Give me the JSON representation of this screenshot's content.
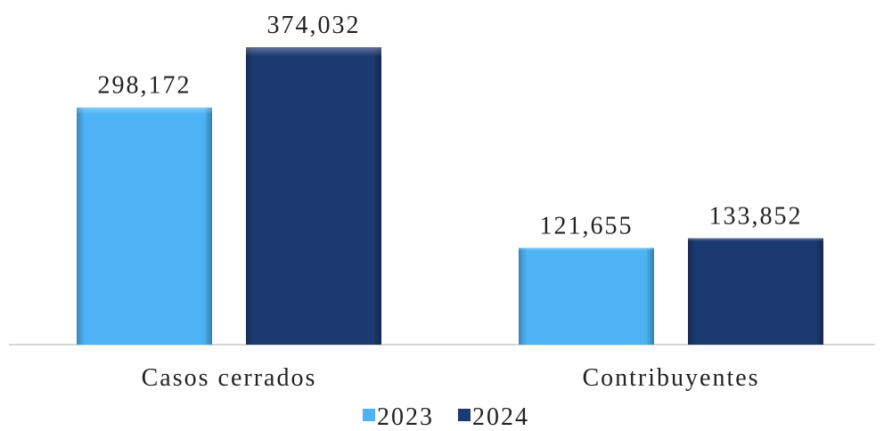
{
  "chart_data": {
    "type": "bar",
    "categories": [
      "Casos cerrados",
      "Contribuyentes"
    ],
    "series": [
      {
        "name": "2023",
        "color": "#4db3f5",
        "values": [
          298172,
          121655
        ],
        "value_labels": [
          "298,172",
          "121,655"
        ]
      },
      {
        "name": "2024",
        "color": "#1c3a72",
        "values": [
          374032,
          133852
        ],
        "value_labels": [
          "374,032",
          "133,852"
        ]
      }
    ],
    "legend": "bottom"
  }
}
